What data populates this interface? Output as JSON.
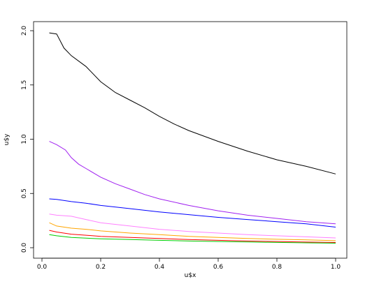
{
  "chart_data": {
    "type": "line",
    "title": "",
    "xlabel": "u$x",
    "ylabel": "u$y",
    "xlim": [
      0,
      1
    ],
    "ylim": [
      0,
      2
    ],
    "x_ticks": [
      "0.0",
      "0.2",
      "0.4",
      "0.6",
      "0.8",
      "1.0"
    ],
    "y_ticks": [
      "0.0",
      "0.5",
      "1.0",
      "1.5",
      "2.0"
    ],
    "grid": false,
    "legend": "none",
    "series": [
      {
        "color": "#000000",
        "points": [
          [
            0.025,
            1.98
          ],
          [
            0.05,
            1.97
          ],
          [
            0.075,
            1.84
          ],
          [
            0.1,
            1.77
          ],
          [
            0.15,
            1.67
          ],
          [
            0.2,
            1.53
          ],
          [
            0.25,
            1.43
          ],
          [
            0.3,
            1.36
          ],
          [
            0.35,
            1.29
          ],
          [
            0.4,
            1.21
          ],
          [
            0.45,
            1.14
          ],
          [
            0.5,
            1.08
          ],
          [
            0.6,
            0.98
          ],
          [
            0.7,
            0.89
          ],
          [
            0.8,
            0.81
          ],
          [
            0.9,
            0.75
          ],
          [
            1.0,
            0.68
          ]
        ]
      },
      {
        "color": "#a020f0",
        "points": [
          [
            0.025,
            0.98
          ],
          [
            0.05,
            0.95
          ],
          [
            0.08,
            0.9
          ],
          [
            0.1,
            0.83
          ],
          [
            0.125,
            0.77
          ],
          [
            0.15,
            0.73
          ],
          [
            0.2,
            0.65
          ],
          [
            0.25,
            0.59
          ],
          [
            0.3,
            0.54
          ],
          [
            0.35,
            0.49
          ],
          [
            0.4,
            0.45
          ],
          [
            0.5,
            0.39
          ],
          [
            0.6,
            0.34
          ],
          [
            0.7,
            0.3
          ],
          [
            0.8,
            0.27
          ],
          [
            0.9,
            0.24
          ],
          [
            1.0,
            0.22
          ]
        ]
      },
      {
        "color": "#0000ff",
        "points": [
          [
            0.025,
            0.45
          ],
          [
            0.05,
            0.445
          ],
          [
            0.1,
            0.425
          ],
          [
            0.15,
            0.41
          ],
          [
            0.2,
            0.39
          ],
          [
            0.3,
            0.36
          ],
          [
            0.4,
            0.33
          ],
          [
            0.5,
            0.305
          ],
          [
            0.6,
            0.28
          ],
          [
            0.7,
            0.26
          ],
          [
            0.8,
            0.24
          ],
          [
            0.9,
            0.22
          ],
          [
            1.0,
            0.19
          ]
        ]
      },
      {
        "color": "#ff80ff",
        "points": [
          [
            0.025,
            0.31
          ],
          [
            0.05,
            0.3
          ],
          [
            0.1,
            0.29
          ],
          [
            0.15,
            0.26
          ],
          [
            0.2,
            0.23
          ],
          [
            0.3,
            0.2
          ],
          [
            0.4,
            0.17
          ],
          [
            0.5,
            0.15
          ],
          [
            0.6,
            0.135
          ],
          [
            0.7,
            0.12
          ],
          [
            0.8,
            0.11
          ],
          [
            0.9,
            0.1
          ],
          [
            1.0,
            0.09
          ]
        ]
      },
      {
        "color": "#ffa500",
        "points": [
          [
            0.025,
            0.23
          ],
          [
            0.05,
            0.2
          ],
          [
            0.1,
            0.18
          ],
          [
            0.15,
            0.17
          ],
          [
            0.2,
            0.155
          ],
          [
            0.3,
            0.135
          ],
          [
            0.4,
            0.12
          ],
          [
            0.5,
            0.105
          ],
          [
            0.6,
            0.095
          ],
          [
            0.7,
            0.085
          ],
          [
            0.8,
            0.078
          ],
          [
            0.9,
            0.072
          ],
          [
            1.0,
            0.065
          ]
        ]
      },
      {
        "color": "#ff0000",
        "points": [
          [
            0.025,
            0.16
          ],
          [
            0.05,
            0.145
          ],
          [
            0.1,
            0.125
          ],
          [
            0.15,
            0.115
          ],
          [
            0.2,
            0.105
          ],
          [
            0.3,
            0.095
          ],
          [
            0.4,
            0.085
          ],
          [
            0.5,
            0.075
          ],
          [
            0.6,
            0.068
          ],
          [
            0.7,
            0.062
          ],
          [
            0.8,
            0.057
          ],
          [
            0.9,
            0.052
          ],
          [
            1.0,
            0.048
          ]
        ]
      },
      {
        "color": "#00cc00",
        "points": [
          [
            0.025,
            0.12
          ],
          [
            0.05,
            0.11
          ],
          [
            0.1,
            0.095
          ],
          [
            0.15,
            0.088
          ],
          [
            0.2,
            0.082
          ],
          [
            0.3,
            0.075
          ],
          [
            0.4,
            0.068
          ],
          [
            0.5,
            0.062
          ],
          [
            0.6,
            0.057
          ],
          [
            0.7,
            0.053
          ],
          [
            0.8,
            0.049
          ],
          [
            0.9,
            0.045
          ],
          [
            1.0,
            0.042
          ]
        ]
      }
    ]
  }
}
